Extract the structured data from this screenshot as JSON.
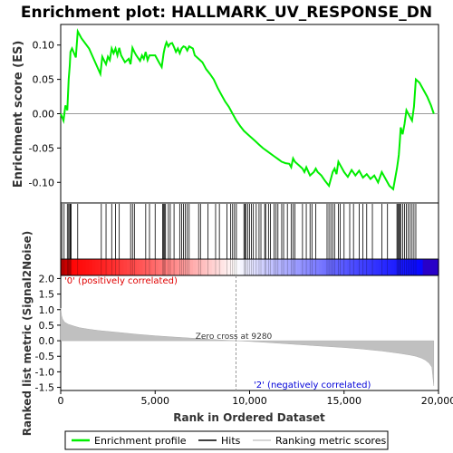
{
  "chart_data": {
    "type": "line",
    "title": "Enrichment plot: HALLMARK_UV_RESPONSE_DN",
    "es_panel": {
      "ylabel": "Enrichment score (ES)",
      "ylim": [
        -0.13,
        0.13
      ],
      "yticks": [
        0.1,
        0.05,
        0.0,
        -0.05,
        -0.1
      ],
      "ytick_labels": [
        "0.10",
        "0.05",
        "0.00",
        "-0.05",
        "-0.10"
      ],
      "line_color": "#00ee00",
      "profile": {
        "x": [
          0,
          150,
          250,
          350,
          420,
          480,
          520,
          600,
          800,
          900,
          1100,
          1500,
          2100,
          2200,
          2400,
          2500,
          2600,
          2700,
          2800,
          2900,
          3000,
          3100,
          3200,
          3400,
          3600,
          3700,
          3800,
          3900,
          4000,
          4200,
          4300,
          4400,
          4500,
          4600,
          4700,
          4800,
          5000,
          5200,
          5350,
          5450,
          5500,
          5550,
          5600,
          5700,
          5800,
          5900,
          6000,
          6100,
          6200,
          6300,
          6400,
          6500,
          6600,
          6700,
          6800,
          7000,
          7100,
          7300,
          7500,
          7700,
          7900,
          8100,
          8300,
          8500,
          8700,
          8900,
          9100,
          9300,
          9500,
          9700,
          9900,
          10100,
          10300,
          10500,
          10700,
          10900,
          11100,
          11300,
          11500,
          11700,
          11900,
          12100,
          12200,
          12300,
          12400,
          12600,
          12800,
          12900,
          13000,
          13200,
          13400,
          13500,
          13600,
          13800,
          14000,
          14200,
          14300,
          14400,
          14500,
          14600,
          14700,
          14800,
          15000,
          15200,
          15400,
          15600,
          15800,
          16000,
          16200,
          16400,
          16600,
          16800,
          17000,
          17200,
          17400,
          17600,
          17800,
          17850,
          17900,
          17950,
          18000,
          18100,
          18200,
          18300,
          18500,
          18600,
          18700,
          18800,
          19000,
          19200,
          19400,
          19600,
          19750
        ],
        "y": [
          0.0,
          -0.01,
          0.012,
          0.005,
          0.05,
          0.07,
          0.09,
          0.095,
          0.082,
          0.12,
          0.11,
          0.095,
          0.058,
          0.083,
          0.072,
          0.083,
          0.078,
          0.095,
          0.088,
          0.095,
          0.085,
          0.096,
          0.085,
          0.075,
          0.08,
          0.072,
          0.096,
          0.09,
          0.085,
          0.077,
          0.085,
          0.08,
          0.09,
          0.078,
          0.085,
          0.085,
          0.085,
          0.075,
          0.068,
          0.088,
          0.095,
          0.1,
          0.104,
          0.098,
          0.102,
          0.103,
          0.097,
          0.09,
          0.095,
          0.088,
          0.095,
          0.098,
          0.097,
          0.092,
          0.098,
          0.095,
          0.085,
          0.08,
          0.075,
          0.065,
          0.058,
          0.05,
          0.038,
          0.028,
          0.018,
          0.01,
          0.0,
          -0.01,
          -0.018,
          -0.025,
          -0.03,
          -0.035,
          -0.04,
          -0.045,
          -0.05,
          -0.054,
          -0.058,
          -0.062,
          -0.066,
          -0.07,
          -0.072,
          -0.073,
          -0.078,
          -0.065,
          -0.07,
          -0.075,
          -0.08,
          -0.085,
          -0.078,
          -0.09,
          -0.085,
          -0.08,
          -0.085,
          -0.09,
          -0.098,
          -0.105,
          -0.095,
          -0.085,
          -0.08,
          -0.088,
          -0.07,
          -0.075,
          -0.085,
          -0.092,
          -0.082,
          -0.09,
          -0.083,
          -0.093,
          -0.088,
          -0.095,
          -0.09,
          -0.1,
          -0.085,
          -0.095,
          -0.105,
          -0.11,
          -0.08,
          -0.07,
          -0.06,
          -0.04,
          -0.02,
          -0.03,
          -0.015,
          0.005,
          -0.005,
          -0.01,
          0.01,
          0.05,
          0.045,
          0.035,
          0.025,
          0.012,
          0.0
        ]
      }
    },
    "hits": {
      "positions": [
        60,
        180,
        350,
        420,
        480,
        520,
        550,
        900,
        2150,
        2400,
        2700,
        2900,
        3100,
        3700,
        3800,
        3900,
        4500,
        4700,
        5000,
        5400,
        5450,
        5500,
        5550,
        5700,
        5800,
        6000,
        6300,
        6400,
        6500,
        6600,
        6700,
        6800,
        7300,
        7400,
        7800,
        8200,
        8400,
        8800,
        9000,
        9100,
        9200,
        9300,
        9700,
        9750,
        9800,
        9900,
        10000,
        10100,
        10200,
        10350,
        10500,
        10600,
        10800,
        10850,
        11000,
        11100,
        11300,
        11400,
        11500,
        11700,
        11800,
        12000,
        12200,
        12300,
        12400,
        12800,
        13000,
        13200,
        13300,
        13500,
        14100,
        14200,
        14300,
        14400,
        14500,
        14700,
        14800,
        15000,
        15300,
        15500,
        15800,
        16000,
        16200,
        16500,
        17000,
        17300,
        17800,
        17850,
        17900,
        17950,
        18000,
        18100,
        18200,
        18300,
        18400,
        18500,
        18600,
        18700,
        18800
      ]
    },
    "ranked_panel": {
      "ylabel": "Ranked list metric (Signal2Noise)",
      "xlabel": "Rank in Ordered Dataset",
      "ylim": [
        -1.6,
        2.1
      ],
      "yticks": [
        2.0,
        1.5,
        1.0,
        0.5,
        0.0,
        -0.5,
        -1.0,
        -1.5
      ],
      "ytick_labels": [
        "2.0",
        "1.5",
        "1.0",
        "0.5",
        "0.0",
        "-0.5",
        "-1.0",
        "-1.5"
      ],
      "xlim": [
        0,
        20000
      ],
      "xticks": [
        0,
        5000,
        10000,
        15000,
        20000
      ],
      "xtick_labels": [
        "0",
        "5,000",
        "10,000",
        "15,000",
        "20,000"
      ],
      "zero_cross": 9280,
      "zero_cross_label": "Zero cross at 9280",
      "positive_label": "'0' (positively correlated)",
      "negative_label": "'2' (negatively correlated)",
      "positive_color": "#ff0000",
      "negative_color": "#0000ff",
      "metric_curve": {
        "x": [
          0,
          50,
          100,
          200,
          400,
          700,
          1000,
          1500,
          2000,
          3000,
          4000,
          5000,
          6000,
          7000,
          8000,
          9280,
          10000,
          11000,
          12000,
          13000,
          14000,
          15000,
          16000,
          16500,
          17000,
          17500,
          18000,
          18500,
          18800,
          19100,
          19300,
          19500,
          19650,
          19750
        ],
        "y": [
          1.05,
          0.8,
          0.7,
          0.6,
          0.53,
          0.47,
          0.42,
          0.37,
          0.33,
          0.27,
          0.21,
          0.16,
          0.12,
          0.08,
          0.04,
          0.0,
          -0.02,
          -0.06,
          -0.1,
          -0.14,
          -0.18,
          -0.22,
          -0.27,
          -0.3,
          -0.33,
          -0.37,
          -0.41,
          -0.46,
          -0.5,
          -0.56,
          -0.62,
          -0.72,
          -0.85,
          -1.45
        ]
      }
    },
    "legend": {
      "items": [
        "Enrichment profile",
        "Hits",
        "Ranking metric scores"
      ],
      "colors": [
        "#00ee00",
        "#000000",
        "#c8c8c8"
      ]
    }
  }
}
